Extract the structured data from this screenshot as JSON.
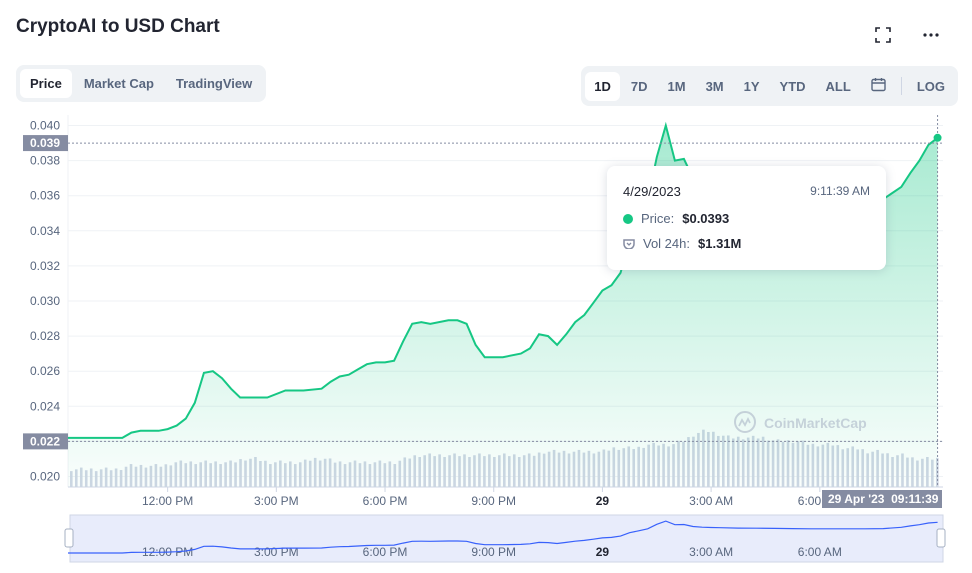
{
  "title": "CryptoAI to USD Chart",
  "icons": {
    "fullscreen": "fullscreen-icon",
    "more": "more-icon",
    "calendar": "calendar-icon",
    "price_dot": "dot-icon",
    "volume": "volume-icon",
    "watermark_logo": "coinmarketcap-logo-icon"
  },
  "tabs": [
    "Price",
    "Market Cap",
    "TradingView"
  ],
  "active_tab": "Price",
  "ranges": [
    "1D",
    "7D",
    "1M",
    "3M",
    "1Y",
    "YTD",
    "ALL"
  ],
  "active_range": "1D",
  "log_label": "LOG",
  "watermark": "CoinMarketCap",
  "tooltip": {
    "date": "4/29/2023",
    "time": "9:11:39 AM",
    "price_label": "Price:",
    "price_value": "$0.0393",
    "volume_label": "Vol 24h:",
    "volume_value": "$1.31M"
  },
  "cursor": {
    "crosshair_price_label": "0.039",
    "low_line_label": "0.022",
    "time_label": "29 Apr '23  09:11:39"
  },
  "colors": {
    "line": "#16c784",
    "volume": "#cfd6e4",
    "text_muted": "#58667e",
    "label_bg": "#858ca2",
    "navigator_line": "#3861fb",
    "navigator_bg": "#e8ecfb"
  },
  "chart_data": {
    "type": "area",
    "title": "CryptoAI to USD Chart",
    "xlabel": "",
    "ylabel": "",
    "y_ticks": [
      "0.040",
      "0.038",
      "0.036",
      "0.034",
      "0.032",
      "0.030",
      "0.028",
      "0.026",
      "0.024",
      "0.022",
      "0.020"
    ],
    "ylim": [
      0.0194,
      0.0406
    ],
    "x_tick_labels": [
      "12:00 PM",
      "3:00 PM",
      "6:00 PM",
      "9:00 PM",
      "29",
      "3:00 AM",
      "6:00 AM"
    ],
    "x_tick_hours": [
      2.75,
      5.75,
      8.75,
      11.75,
      14.75,
      17.75,
      20.75
    ],
    "x_range_hours": [
      0,
      24.15
    ],
    "grid": true,
    "series": [
      {
        "name": "",
        "x": [
          0,
          0.5,
          1.0,
          1.5,
          1.75,
          2.0,
          2.5,
          2.75,
          3.0,
          3.25,
          3.5,
          3.75,
          4.0,
          4.25,
          4.5,
          4.75,
          5.0,
          5.5,
          6.0,
          6.5,
          7.0,
          7.25,
          7.5,
          7.75,
          8.0,
          8.25,
          8.5,
          8.75,
          9.0,
          9.25,
          9.5,
          9.75,
          10.0,
          10.5,
          10.75,
          11.0,
          11.25,
          11.5,
          12.0,
          12.5,
          12.75,
          13.0,
          13.25,
          13.5,
          13.75,
          14.0,
          14.25,
          14.5,
          14.75,
          15.0,
          15.25,
          15.5,
          15.75,
          16.0,
          16.25,
          16.5,
          16.75,
          17.0,
          17.25,
          17.5,
          17.75,
          18.0,
          18.5,
          19.0,
          19.5,
          20.0,
          20.5,
          21.0,
          21.5,
          22.0,
          22.5,
          23.0,
          23.25,
          23.5,
          23.75,
          24.0
        ],
        "y": [
          0.0222,
          0.0222,
          0.0222,
          0.0222,
          0.0225,
          0.0226,
          0.0226,
          0.0227,
          0.0229,
          0.0233,
          0.0242,
          0.0259,
          0.026,
          0.0256,
          0.025,
          0.0245,
          0.0245,
          0.0245,
          0.0249,
          0.0249,
          0.025,
          0.0254,
          0.0257,
          0.0258,
          0.0261,
          0.0264,
          0.0265,
          0.0265,
          0.0266,
          0.0277,
          0.0287,
          0.0288,
          0.0287,
          0.0289,
          0.0289,
          0.0287,
          0.0275,
          0.0268,
          0.0268,
          0.027,
          0.0273,
          0.0281,
          0.028,
          0.0275,
          0.0281,
          0.0288,
          0.0292,
          0.0299,
          0.0306,
          0.0309,
          0.0316,
          0.0335,
          0.0346,
          0.0357,
          0.0382,
          0.04,
          0.038,
          0.0381,
          0.037,
          0.0366,
          0.0364,
          0.0363,
          0.0361,
          0.036,
          0.0359,
          0.0358,
          0.0357,
          0.0357,
          0.0357,
          0.0357,
          0.0358,
          0.0365,
          0.0373,
          0.038,
          0.0389,
          0.0393
        ]
      }
    ],
    "volume": [
      5,
      5,
      5,
      5,
      5,
      6,
      6,
      6,
      6,
      7,
      7,
      7,
      7,
      7,
      7,
      8,
      8,
      7,
      7,
      7,
      7,
      8,
      8,
      7,
      7,
      7,
      7,
      7,
      7,
      8,
      9,
      9,
      9,
      9,
      9,
      9,
      9,
      9,
      9,
      9,
      9,
      10,
      10,
      10,
      10,
      10,
      10,
      11,
      11,
      11,
      12,
      12,
      12,
      13,
      15,
      16,
      15,
      14,
      14,
      14,
      14,
      13,
      13,
      13,
      12,
      12,
      12,
      11,
      11,
      10,
      10,
      9,
      9,
      8,
      8,
      8
    ],
    "volume_ylim": [
      0,
      17
    ]
  }
}
